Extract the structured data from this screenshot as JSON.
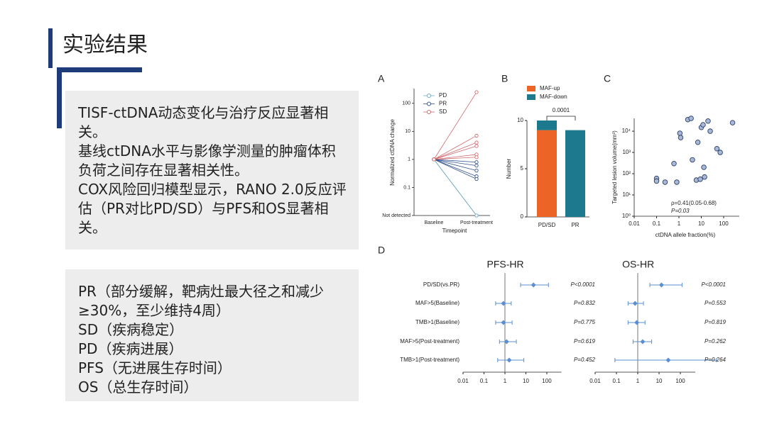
{
  "header": {
    "title": "实验结果"
  },
  "text_box_1": {
    "paragraphs": [
      "TISF-ctDNA动态变化与治疗反应显著相关。",
      "基线ctDNA水平与影像学测量的肿瘤体积负荷之间存在显著相关性。",
      "COX风险回归模型显示，RANO 2.0反应评估（PR对比PD/SD）与PFS和OS显著相关。"
    ]
  },
  "text_box_2": {
    "paragraphs": [
      "PR（部分缓解，靶病灶最大径之和减少≥30%，至少维持4周）",
      "SD（疾病稳定）",
      "PD（疾病进展）",
      "PFS（无进展生存时间）",
      "OS（总生存时间）"
    ]
  },
  "chart_data": [
    {
      "type": "line",
      "panel": "A",
      "categories": [
        "Baseline",
        "Post-treatment"
      ],
      "x_label": "Timepoint",
      "y_label": "Normalized ctDNA change",
      "log_y": true,
      "ylim": [
        0.01,
        335
      ],
      "yticks": [
        {
          "value": 0.01,
          "label": "Not detected"
        },
        0.1,
        1,
        10,
        100
      ],
      "series": [
        {
          "name": "PD",
          "color": "#6fa9c4",
          "values": [
            [
              1,
              0.01
            ],
            [
              1,
              0.01
            ]
          ]
        },
        {
          "name": "PR",
          "color": "#34548f",
          "values": [
            [
              1,
              0.8
            ],
            [
              1,
              0.6
            ],
            [
              1,
              0.4
            ],
            [
              1,
              0.25
            ],
            [
              1,
              0.2
            ]
          ]
        },
        {
          "name": "SD",
          "color": "#d06a6e",
          "values": [
            [
              1,
              250
            ],
            [
              1,
              7
            ],
            [
              1,
              4
            ],
            [
              1,
              3
            ],
            [
              1,
              1.5
            ],
            [
              1,
              1.2
            ]
          ]
        }
      ]
    },
    {
      "type": "stacked_bar",
      "panel": "B",
      "categories": [
        "PD/SD",
        "PR"
      ],
      "y_label": "Number",
      "ylim": [
        0,
        10
      ],
      "yticks": [
        0,
        5,
        10
      ],
      "annotation": "0.0001",
      "series": [
        {
          "name": "MAF-up",
          "color": "#ec6526",
          "values": [
            9,
            0
          ]
        },
        {
          "name": "MAF-down",
          "color": "#1d7a8e",
          "values": [
            1,
            9
          ]
        }
      ]
    },
    {
      "type": "scatter",
      "panel": "C",
      "x_label": "ctDNA allele fraction(%)",
      "y_label": "Targeted lesion volume(mm³)",
      "log_x": true,
      "log_y": true,
      "xlim": [
        0.01,
        500
      ],
      "xticks": [
        0.01,
        0.1,
        1,
        10,
        100
      ],
      "ylim": [
        1,
        40000
      ],
      "yticks": [
        {
          "value": 1,
          "label": "10⁰"
        },
        {
          "value": 10,
          "label": "10¹"
        },
        {
          "value": 100,
          "label": "10²"
        },
        {
          "value": 1000,
          "label": "10³"
        },
        {
          "value": 10000,
          "label": "10⁴"
        }
      ],
      "annotations": [
        "ρ=0.41(0.05-0.68)",
        "P=0.03"
      ],
      "color": "#a9b8d6",
      "edge_color": "#2b3f6a",
      "x": [
        0.1,
        0.1,
        0.24,
        0.6,
        0.8,
        1.1,
        1.2,
        2.5,
        3.5,
        4,
        7,
        10,
        12,
        13,
        14,
        20,
        25,
        50,
        70,
        250,
        6,
        9
      ],
      "values": [
        60,
        45,
        40,
        300,
        40,
        8000,
        5000,
        35000,
        40000,
        450,
        3000,
        15000,
        20000,
        200,
        70,
        30000,
        10000,
        1500,
        1000,
        25000,
        50,
        55
      ]
    },
    {
      "type": "forest",
      "panel": "D",
      "title": "PFS-HR",
      "log_x": true,
      "color": "#5b8fd0",
      "reference": 1,
      "xlim": [
        0.01,
        500
      ],
      "xticks": [
        0.01,
        0.1,
        1,
        10,
        100
      ],
      "categories": [
        "PD/SD(vs.PR)",
        "MAF>5(Baseline)",
        "TMB>1(Baseline)",
        "MAF>5(Post-treatment)",
        "TMB>1(Post-treatment)"
      ],
      "values": [
        23,
        0.85,
        0.85,
        1.2,
        1.6
      ],
      "ci_low": [
        5.6,
        0.36,
        0.36,
        0.55,
        0.45
      ],
      "ci_high": [
        120,
        2.0,
        2.2,
        3.5,
        8
      ],
      "p_labels": [
        "P<0.0001",
        "P=0.832",
        "P=0.775",
        "P=0.619",
        "P=0.452"
      ]
    },
    {
      "type": "forest",
      "title": "OS-HR",
      "log_x": true,
      "color": "#5b8fd0",
      "reference": 1,
      "xlim": [
        0.01,
        500
      ],
      "xticks": [
        0.01,
        0.1,
        1,
        10,
        100
      ],
      "values": [
        13,
        0.75,
        0.9,
        1.7,
        27
      ],
      "ci_low": [
        3.7,
        0.35,
        0.35,
        0.6,
        0.085
      ],
      "ci_high": [
        120,
        1.85,
        2.2,
        4.5,
        5000
      ],
      "p_labels": [
        "P<0.0001",
        "P=0.553",
        "P=0.819",
        "P=0.262",
        "P=0.264"
      ]
    }
  ]
}
